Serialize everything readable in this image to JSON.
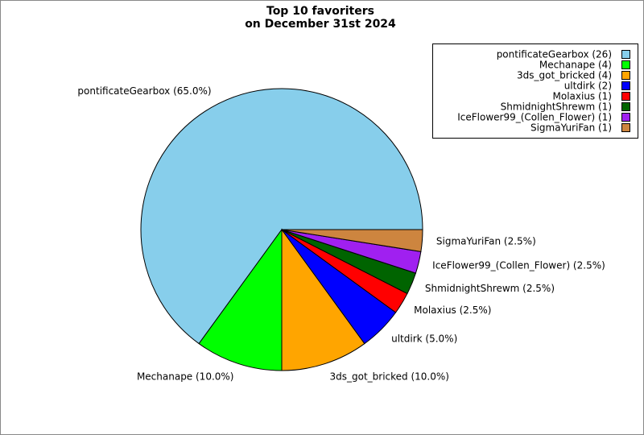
{
  "chart_data": {
    "type": "pie",
    "title": [
      "Top 10 favoriters",
      "on December 31st 2024"
    ],
    "categories": [
      "pontificateGearbox (26)",
      "Mechanape (4)",
      "3ds_got_bricked (4)",
      "ultdirk (2)",
      "Molaxius (1)",
      "ShmidnightShrewm (1)",
      "IceFlower99_(Collen_Flower) (1)",
      "SigmaYuriFan (1)"
    ],
    "values": [
      65,
      10,
      10,
      5,
      2.5,
      2.5,
      2.5,
      2.5
    ],
    "value_labels": [
      "pontificateGearbox (65.0%)",
      "Mechanape (10.0%)",
      "3ds_got_bricked (10.0%)",
      "ultdirk (5.0%)",
      "Molaxius (2.5%)",
      "ShmidnightShrewm (2.5%)",
      "IceFlower99_(Collen_Flower) (2.5%)",
      "SigmaYuriFan (2.5%)"
    ],
    "colors": [
      "#87ceeb",
      "#00ff00",
      "#ffa500",
      "#0000ff",
      "#ff0000",
      "#006400",
      "#a020f0",
      "#cd853f"
    ],
    "legend": "upper right"
  }
}
